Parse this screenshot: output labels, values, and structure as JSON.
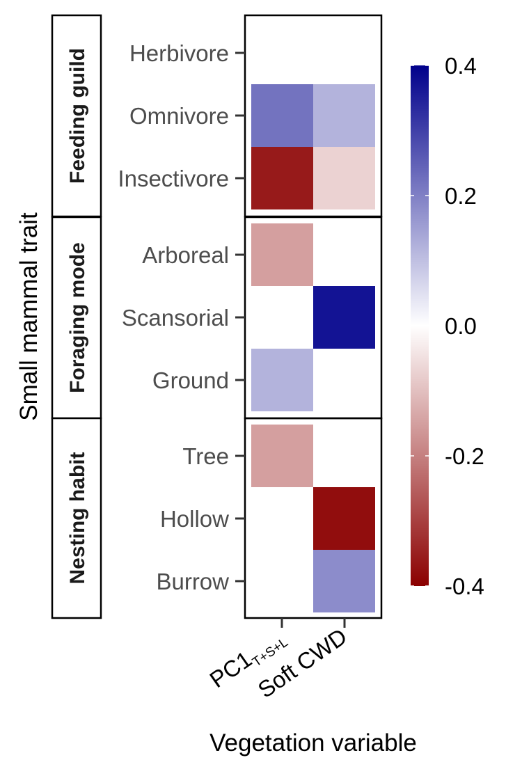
{
  "chart_data": {
    "type": "heatmap",
    "x_axis_title": "Vegetation variable",
    "y_axis_title": "Small mammal trait",
    "x_labels": [
      {
        "main": "PC1",
        "subscript": "T+S+L"
      },
      {
        "main": "Soft CWD",
        "subscript": ""
      }
    ],
    "facets": [
      {
        "label": "Feeding guild",
        "rows": [
          {
            "label": "Herbivore",
            "values": [
              null,
              null
            ]
          },
          {
            "label": "Omnivore",
            "values": [
              0.22,
              0.12
            ]
          },
          {
            "label": "Insectivore",
            "values": [
              -0.36,
              -0.07
            ]
          }
        ]
      },
      {
        "label": "Foraging mode",
        "rows": [
          {
            "label": "Arboreal",
            "values": [
              -0.15,
              null
            ]
          },
          {
            "label": "Scansorial",
            "values": [
              null,
              0.37
            ]
          },
          {
            "label": "Ground",
            "values": [
              0.12,
              null
            ]
          }
        ]
      },
      {
        "label": "Nesting habit",
        "rows": [
          {
            "label": "Tree",
            "values": [
              -0.15,
              null
            ]
          },
          {
            "label": "Hollow",
            "values": [
              null,
              -0.38
            ]
          },
          {
            "label": "Burrow",
            "values": [
              null,
              0.18
            ]
          }
        ]
      }
    ],
    "legend": {
      "min": -0.4,
      "max": 0.4,
      "ticks": [
        0.4,
        0.2,
        0.0,
        -0.2,
        -0.4
      ],
      "tick_labels": [
        "0.4",
        "0.2",
        "0.0",
        "-0.2",
        "-0.4"
      ],
      "colors": {
        "low": "#8b0000",
        "mid": "#ffffff",
        "high": "#00008b"
      },
      "placement": "right"
    }
  }
}
